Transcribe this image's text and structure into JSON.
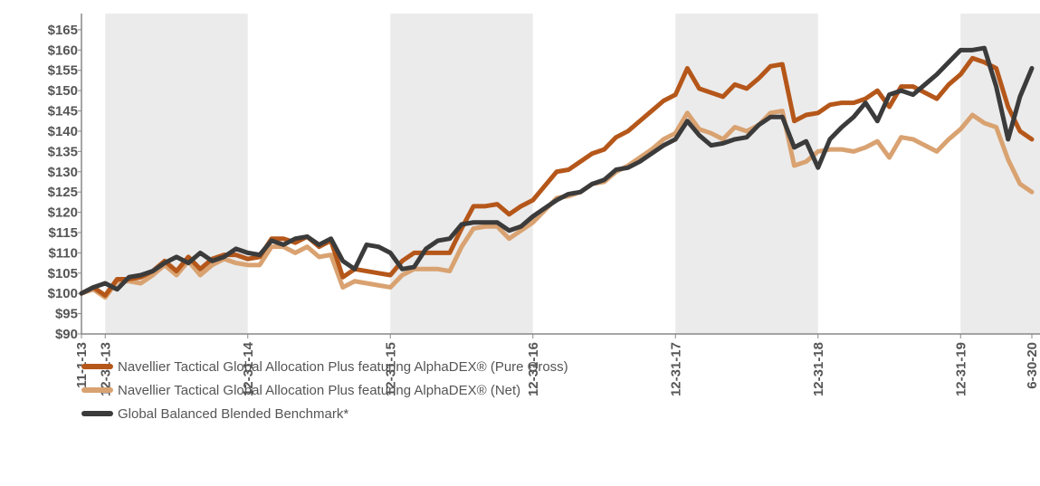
{
  "chart_data": {
    "type": "line",
    "categories": [
      "11-1-13",
      null,
      "12-31-13",
      null,
      null,
      null,
      null,
      null,
      null,
      null,
      null,
      null,
      null,
      null,
      "12-31-14",
      null,
      null,
      null,
      null,
      null,
      null,
      null,
      null,
      null,
      null,
      null,
      "12-31-15",
      null,
      null,
      null,
      null,
      null,
      null,
      null,
      null,
      null,
      null,
      null,
      "12-31-16",
      null,
      null,
      null,
      null,
      null,
      null,
      null,
      null,
      null,
      null,
      null,
      "12-31-17",
      null,
      null,
      null,
      null,
      null,
      null,
      null,
      null,
      null,
      null,
      null,
      "12-31-18",
      null,
      null,
      null,
      null,
      null,
      null,
      null,
      null,
      null,
      null,
      null,
      "12-31-19",
      null,
      null,
      null,
      null,
      null,
      "6-30-20"
    ],
    "series": [
      {
        "name": "Navellier Tactical Global Allocation Plus featuring AlphaDEX® (Pure Gross)",
        "color": "#b5571a",
        "values": [
          100,
          101.5,
          99.5,
          103.5,
          103.5,
          104,
          105.5,
          108,
          105.5,
          109,
          106,
          108.5,
          109.5,
          109.5,
          108.5,
          109,
          113.5,
          113.5,
          112.5,
          114,
          111.5,
          113,
          104,
          106,
          105.5,
          105,
          104.5,
          108,
          110,
          110,
          110,
          110,
          116,
          121.5,
          121.5,
          122,
          119.5,
          121.5,
          123,
          126.5,
          130,
          130.5,
          132.5,
          134.5,
          135.5,
          138.5,
          140,
          142.5,
          145,
          147.5,
          149,
          155.5,
          150.5,
          149.5,
          148.5,
          151.5,
          150.5,
          153,
          156,
          156.5,
          142.5,
          144,
          144.5,
          146.5,
          147,
          147,
          148,
          150,
          146,
          151,
          151,
          149.5,
          148,
          151.5,
          154,
          158,
          157,
          155.5,
          146,
          140,
          138
        ]
      },
      {
        "name": "Navellier Tactical Global Allocation Plus featuring AlphaDEX® (Net)",
        "color": "#d9a271",
        "values": [
          100,
          101,
          99,
          103,
          103,
          102.5,
          104.5,
          107,
          104.5,
          108,
          104.5,
          107,
          108.5,
          107.5,
          107,
          107,
          111.5,
          111.5,
          110,
          111.5,
          109,
          109.5,
          101.5,
          103,
          102.5,
          102,
          101.5,
          104.5,
          106,
          106,
          106,
          105.5,
          111.5,
          116,
          116.5,
          116.5,
          113.5,
          115.5,
          117.5,
          120.5,
          123.5,
          124,
          125,
          127,
          127.5,
          130,
          131.5,
          133.5,
          135.5,
          138,
          139.5,
          144.5,
          140.5,
          139.5,
          138,
          141,
          140,
          141.5,
          144.5,
          145,
          131.5,
          132.5,
          135,
          135.5,
          135.5,
          135,
          136,
          137.5,
          133.5,
          138.5,
          138,
          136.5,
          135,
          138,
          140.5,
          144,
          142,
          141,
          133,
          127,
          125
        ]
      },
      {
        "name": "Global Balanced Blended Benchmark*",
        "color": "#3b3b3b",
        "values": [
          100,
          101.5,
          102.5,
          101,
          104,
          104.5,
          105.5,
          107.5,
          109,
          107.5,
          110,
          108,
          109,
          111,
          110,
          109.5,
          113,
          112,
          113.5,
          114,
          112,
          113.5,
          108,
          106,
          112,
          111.5,
          110,
          106,
          106.5,
          111,
          113,
          113.5,
          117,
          117.5,
          117.5,
          117.5,
          115.5,
          116.5,
          119,
          121,
          123,
          124.5,
          125,
          127,
          128,
          130.5,
          131,
          132.5,
          134.5,
          136.5,
          138,
          142.5,
          139,
          136.5,
          137,
          138,
          138.5,
          141.5,
          143.5,
          143.5,
          136,
          137.5,
          131,
          138,
          141,
          143.5,
          147,
          142.5,
          149,
          150,
          149,
          151.5,
          154,
          157,
          160,
          160,
          160.5,
          151,
          138,
          148.5,
          155.5
        ]
      }
    ],
    "ylim": [
      90,
      169
    ],
    "yticks": [
      {
        "value": 90,
        "label": "$90"
      },
      {
        "value": 95,
        "label": "$95"
      },
      {
        "value": 100,
        "label": "$100"
      },
      {
        "value": 105,
        "label": "$105"
      },
      {
        "value": 110,
        "label": "$110"
      },
      {
        "value": 115,
        "label": "$115"
      },
      {
        "value": 120,
        "label": "$120"
      },
      {
        "value": 125,
        "label": "$125"
      },
      {
        "value": 130,
        "label": "$130"
      },
      {
        "value": 135,
        "label": "$135"
      },
      {
        "value": 140,
        "label": "$140"
      },
      {
        "value": 145,
        "label": "$145"
      },
      {
        "value": 150,
        "label": "$150"
      },
      {
        "value": 155,
        "label": "$155"
      },
      {
        "value": 160,
        "label": "$160"
      },
      {
        "value": 165,
        "label": "$165"
      }
    ],
    "grid": false,
    "legend": "bottom"
  }
}
